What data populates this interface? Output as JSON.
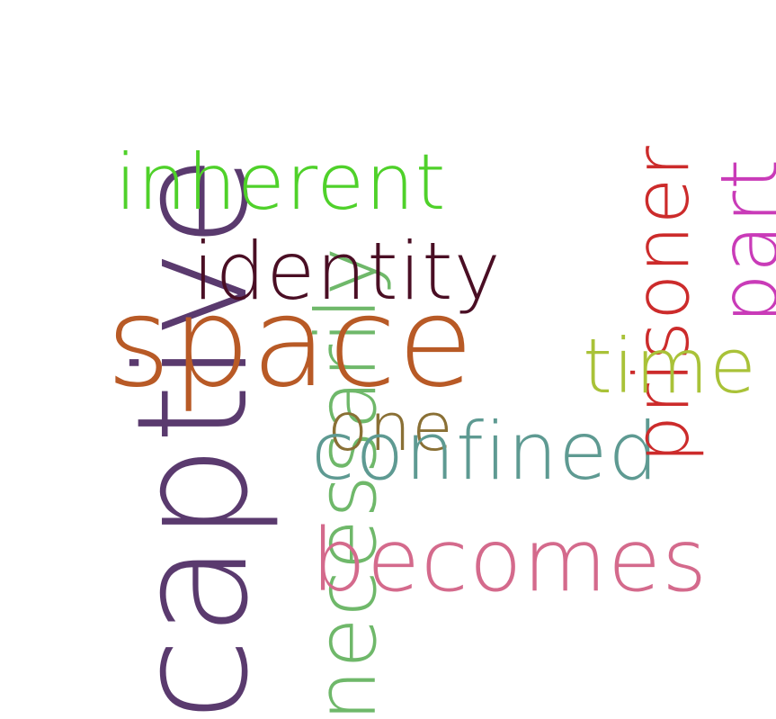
{
  "words": [
    {
      "key": "captive",
      "text": "captive",
      "color": "#5a3a6e"
    },
    {
      "key": "necessarily",
      "text": "necessarily",
      "color": "#6fb86a"
    },
    {
      "key": "space",
      "text": "space",
      "color": "#b85a26"
    },
    {
      "key": "inherent",
      "text": "inherent",
      "color": "#4fd12a"
    },
    {
      "key": "identity",
      "text": "identity",
      "color": "#4a0e24"
    },
    {
      "key": "one",
      "text": "one",
      "color": "#8a7035"
    },
    {
      "key": "confined",
      "text": "confined",
      "color": "#5e9a92"
    },
    {
      "key": "becomes",
      "text": "becomes",
      "color": "#d46a8c"
    },
    {
      "key": "prisoner",
      "text": "prisoner",
      "color": "#cc2b2b"
    },
    {
      "key": "part",
      "text": "part",
      "color": "#c93bb8"
    },
    {
      "key": "time",
      "text": "time",
      "color": "#a9c238"
    }
  ]
}
